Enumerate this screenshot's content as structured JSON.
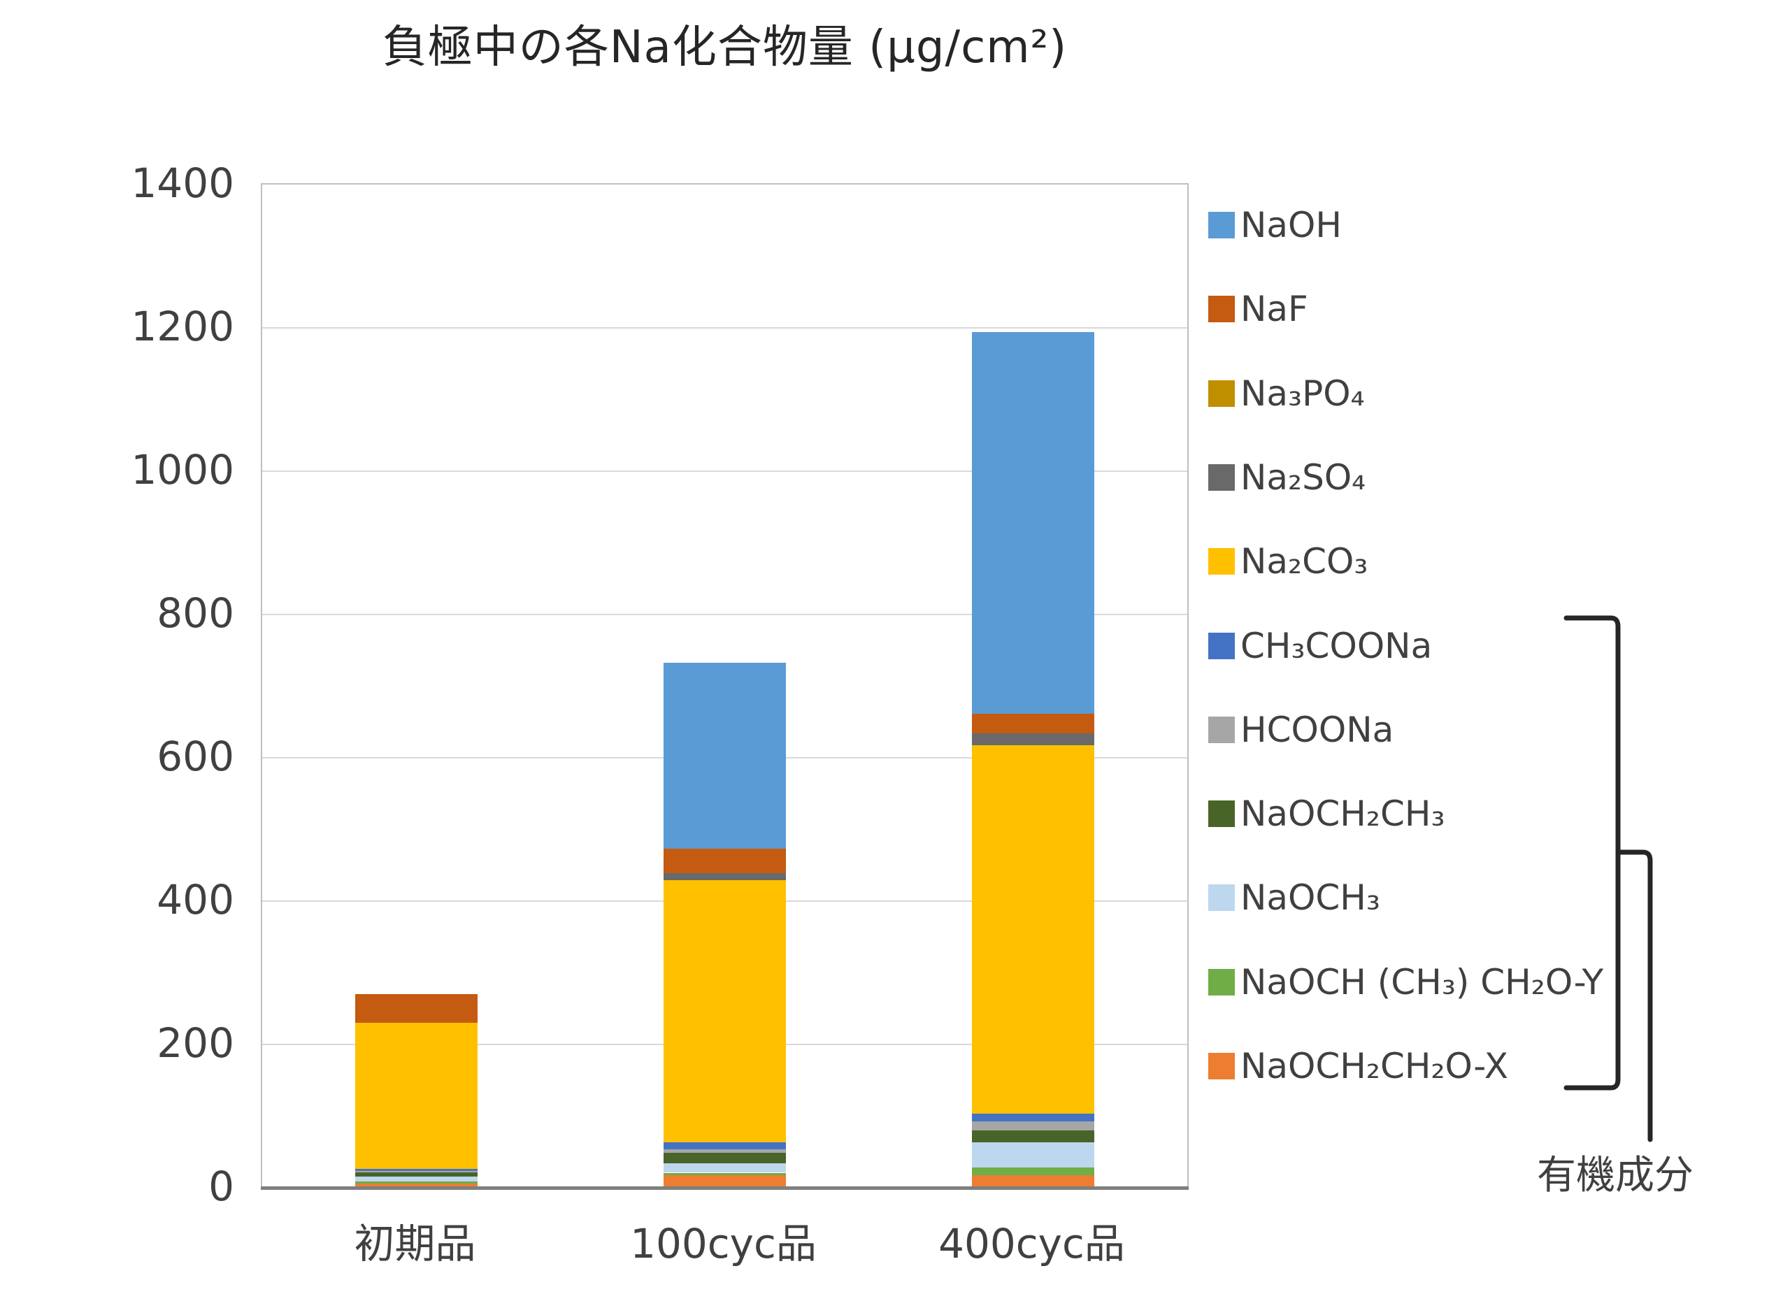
{
  "chart_data": {
    "type": "bar",
    "stacked": true,
    "title": "負極中の各Na化合物量 (μg/cm²)",
    "categories": [
      "初期品",
      "100cyc品",
      "400cyc品"
    ],
    "series": [
      {
        "name": "NaOH",
        "color": "#5B9BD5",
        "values": [
          0,
          260,
          533
        ]
      },
      {
        "name": "NaF",
        "color": "#C55A11",
        "values": [
          40,
          34,
          27
        ]
      },
      {
        "name": "Na₃PO₄",
        "color": "#BF8F00",
        "values": [
          0,
          0,
          0
        ]
      },
      {
        "name": "Na₂SO₄",
        "color": "#696969",
        "values": [
          0,
          10,
          16
        ]
      },
      {
        "name": "Na₂CO₃",
        "color": "#FFC000",
        "values": [
          204,
          366,
          515
        ]
      },
      {
        "name": "CH₃COONa",
        "color": "#4472C4",
        "values": [
          3,
          9,
          10
        ]
      },
      {
        "name": "HCOONa",
        "color": "#A6A6A6",
        "values": [
          2,
          5,
          13
        ]
      },
      {
        "name": "NaOCH₂CH₃",
        "color": "#486428",
        "values": [
          5,
          15,
          17
        ]
      },
      {
        "name": "NaOCH₃",
        "color": "#BDD7EE",
        "values": [
          7,
          13,
          35
        ]
      },
      {
        "name": "NaOCH (CH₃) CH₂O-Y",
        "color": "#70AD47",
        "values": [
          3,
          3,
          10
        ]
      },
      {
        "name": "NaOCH₂CH₂O-X",
        "color": "#ED7D31",
        "values": [
          6,
          18,
          18
        ]
      }
    ],
    "totals": [
      270,
      733,
      1194
    ],
    "ylim": [
      0,
      1400
    ],
    "yticks": [
      0,
      200,
      400,
      600,
      800,
      1000,
      1200,
      1400
    ],
    "grid": true,
    "legend_position": "right",
    "annotation": "有機成分"
  }
}
